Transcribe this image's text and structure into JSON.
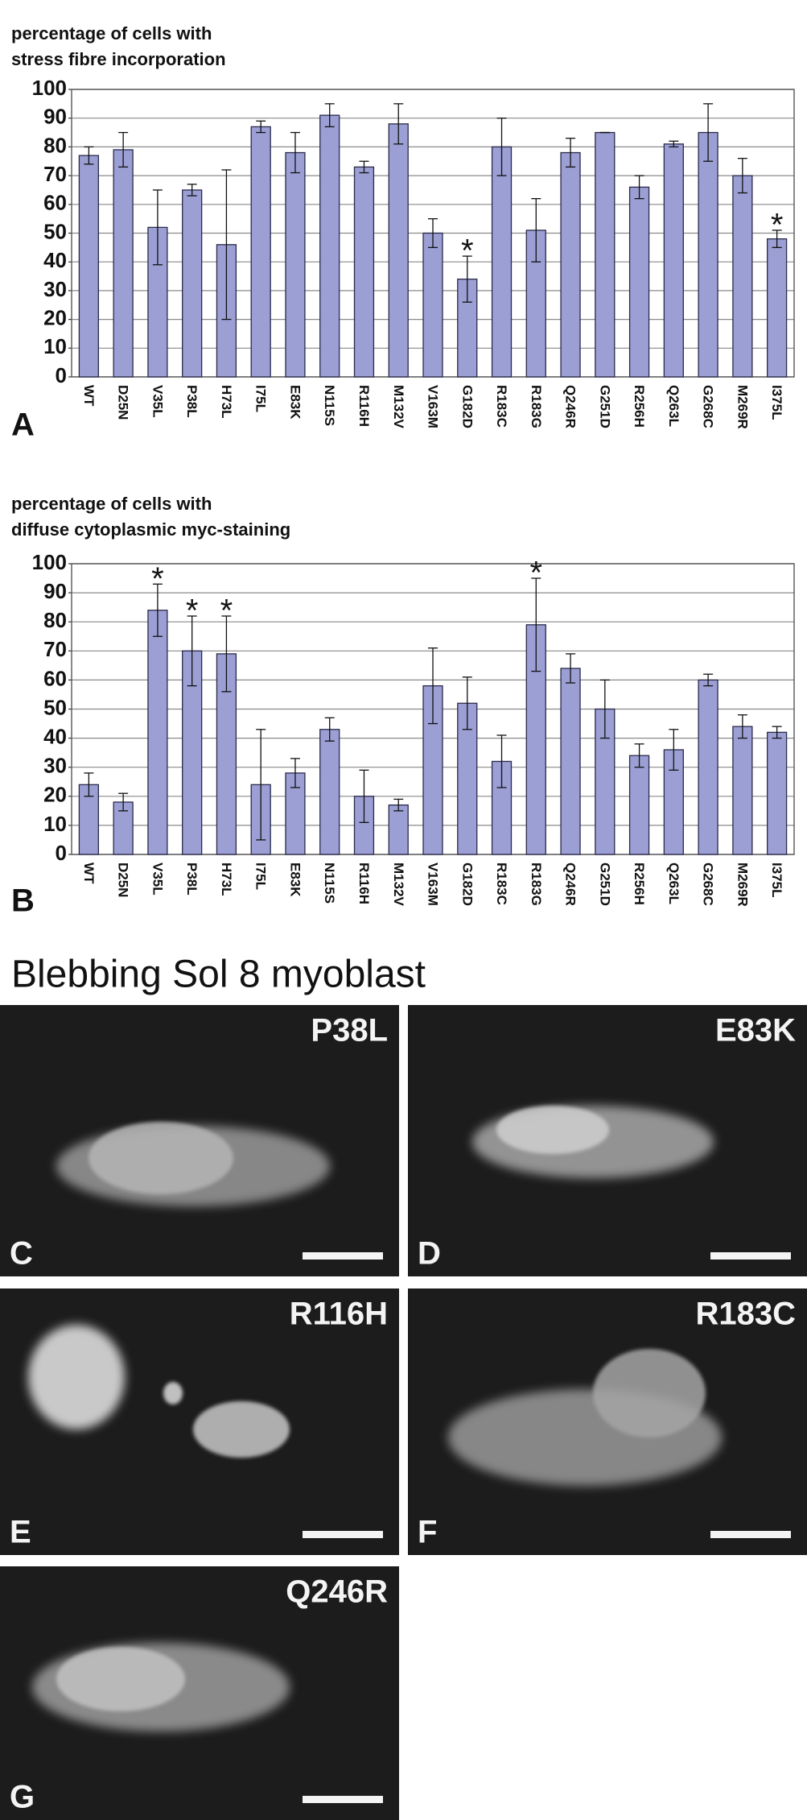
{
  "chart_data": [
    {
      "type": "bar",
      "panel": "A",
      "title": [
        "percentage of cells with",
        "stress fibre incorporation"
      ],
      "categories": [
        "WT",
        "D25N",
        "V35L",
        "P38L",
        "H73L",
        "I75L",
        "E83K",
        "N115S",
        "R116H",
        "M132V",
        "V163M",
        "G182D",
        "R183C",
        "R183G",
        "Q246R",
        "G251D",
        "R256H",
        "Q263L",
        "G268C",
        "M269R",
        "I375L"
      ],
      "values": [
        77,
        79,
        52,
        65,
        46,
        87,
        78,
        91,
        73,
        88,
        50,
        34,
        80,
        51,
        78,
        85,
        66,
        81,
        85,
        70,
        48
      ],
      "errors": [
        3,
        6,
        13,
        2,
        26,
        2,
        7,
        4,
        2,
        7,
        5,
        8,
        10,
        11,
        5,
        0,
        4,
        1,
        10,
        6,
        3
      ],
      "color": "#9b9fd4",
      "ylim": [
        0,
        100
      ],
      "yticks": [
        0,
        10,
        20,
        30,
        40,
        50,
        60,
        70,
        80,
        90,
        100
      ],
      "grid": true,
      "annotations": [
        {
          "text": "*",
          "category": 11
        },
        {
          "text": "*",
          "category": 20
        }
      ]
    },
    {
      "type": "bar",
      "panel": "B",
      "title": [
        "percentage of cells with",
        "diffuse cytoplasmic myc-staining"
      ],
      "categories": [
        "WT",
        "D25N",
        "V35L",
        "P38L",
        "H73L",
        "I75L",
        "E83K",
        "N115S",
        "R116H",
        "M132V",
        "V163M",
        "G182D",
        "R183C",
        "R183G",
        "Q246R",
        "G251D",
        "R256H",
        "Q263L",
        "G268C",
        "M269R",
        "I375L"
      ],
      "values": [
        24,
        18,
        84,
        70,
        69,
        24,
        28,
        43,
        20,
        17,
        58,
        52,
        32,
        79,
        64,
        50,
        34,
        36,
        60,
        44,
        42
      ],
      "errors": [
        4,
        3,
        9,
        12,
        13,
        19,
        5,
        4,
        9,
        2,
        13,
        9,
        9,
        16,
        5,
        10,
        4,
        7,
        2,
        4,
        2
      ],
      "color": "#9b9fd4",
      "ylim": [
        0,
        100
      ],
      "yticks": [
        0,
        10,
        20,
        30,
        40,
        50,
        60,
        70,
        80,
        90,
        100
      ],
      "grid": true,
      "annotations": [
        {
          "text": "*",
          "category": 2
        },
        {
          "text": "*",
          "category": 3
        },
        {
          "text": "*",
          "category": 4
        },
        {
          "text": "*",
          "category": 13
        }
      ]
    }
  ],
  "micrographs": {
    "title": "Blebbing Sol 8 myoblast",
    "panels": [
      {
        "letter": "C",
        "label": "P38L"
      },
      {
        "letter": "D",
        "label": "E83K"
      },
      {
        "letter": "E",
        "label": "R116H"
      },
      {
        "letter": "F",
        "label": "R183C"
      },
      {
        "letter": "G",
        "label": "Q246R"
      }
    ]
  }
}
